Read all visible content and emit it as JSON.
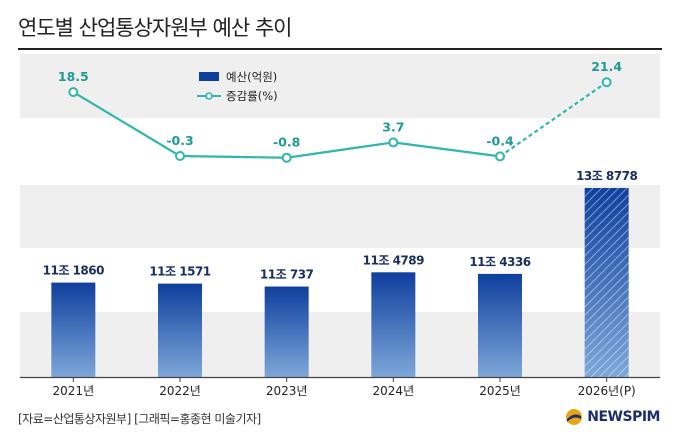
{
  "title": "연도별 산업통상자원부 예산 추이",
  "footer": "[자료=산업통상자원부] [그래픽=홍종현 미술기자]",
  "brand": "NEWSPIM",
  "colors": {
    "bar_top": "#0f3f9e",
    "bar_bottom": "#7da7d9",
    "line": "#2fb6ae",
    "band": "#efefef",
    "axis": "#444444"
  },
  "chart_data": {
    "type": "bar",
    "categories": [
      "2021년",
      "2022년",
      "2023년",
      "2024년",
      "2025년",
      "2026년(P)"
    ],
    "bar_labels": [
      "11조 1860",
      "11조 1571",
      "11조 737",
      "11조 4789",
      "11조 4336",
      "13조 8778"
    ],
    "series": [
      {
        "name": "예산(억원)",
        "type": "bar",
        "values": [
          111860,
          111571,
          110737,
          114789,
          114336,
          138778
        ],
        "projected_index": 5
      },
      {
        "name": "증감률(%)",
        "type": "line",
        "values": [
          18.5,
          -0.3,
          -0.8,
          3.7,
          -0.4,
          21.4
        ],
        "value_labels": [
          "18.5",
          "-0.3",
          "-0.8",
          "3.7",
          "-0.4",
          "21.4"
        ],
        "dashed_from_index": 4
      }
    ],
    "legend": "top-left",
    "grid": false
  }
}
